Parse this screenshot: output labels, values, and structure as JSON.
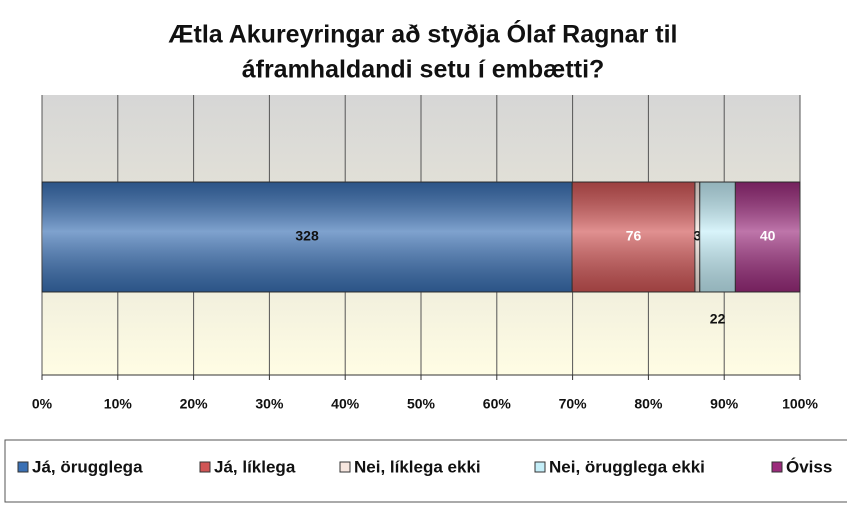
{
  "chart_data": {
    "type": "bar",
    "orientation": "horizontal",
    "stacked": "percent",
    "title": [
      "Ætla Akureyringar að styðja Ólaf Ragnar til",
      "áframhaldandi setu í embætti?"
    ],
    "series": [
      {
        "name": "Já, örugglega",
        "color": "#3a70b4",
        "values": [
          328
        ]
      },
      {
        "name": "Já, líklega",
        "color": "#d05555",
        "values": [
          76
        ]
      },
      {
        "name": "Nei, líklega ekki",
        "color": "#f6e6df",
        "values": [
          3
        ]
      },
      {
        "name": "Nei, örugglega ekki",
        "color": "#c4eef8",
        "values": [
          22
        ]
      },
      {
        "name": "Óviss",
        "color": "#9b2b7c",
        "values": [
          40
        ]
      }
    ],
    "xlim": [
      0,
      100
    ],
    "xticks": [
      {
        "value": 0,
        "label": "0%"
      },
      {
        "value": 10,
        "label": "10%"
      },
      {
        "value": 20,
        "label": "20%"
      },
      {
        "value": 30,
        "label": "30%"
      },
      {
        "value": 40,
        "label": "40%"
      },
      {
        "value": 50,
        "label": "50%"
      },
      {
        "value": 60,
        "label": "60%"
      },
      {
        "value": 70,
        "label": "70%"
      },
      {
        "value": 80,
        "label": "80%"
      },
      {
        "value": 90,
        "label": "90%"
      },
      {
        "value": 100,
        "label": "100%"
      }
    ],
    "grid": true,
    "legend": "bottom"
  }
}
